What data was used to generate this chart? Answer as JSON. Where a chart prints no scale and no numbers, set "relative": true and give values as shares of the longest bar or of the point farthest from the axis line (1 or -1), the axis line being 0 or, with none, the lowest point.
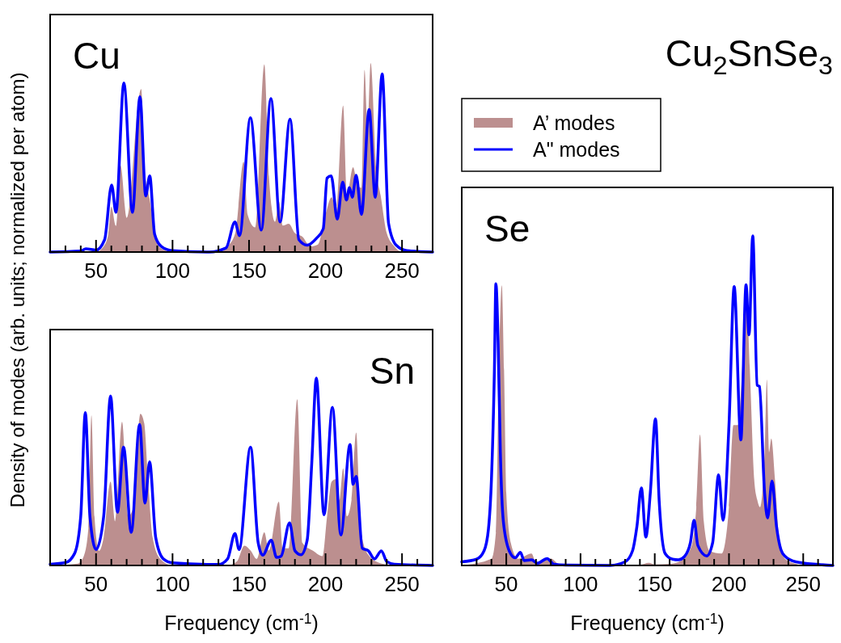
{
  "chart_data": [
    {
      "type": "line",
      "relative": true,
      "ylabel": "Density of modes (arb. units; normalized per atom)",
      "annotations": [
        "Cu"
      ],
      "xlim": [
        20,
        270
      ],
      "xticks": [
        {
          "value": 30,
          "label": null
        },
        {
          "value": 40,
          "label": null
        },
        50,
        {
          "value": 60,
          "label": null
        },
        {
          "value": 70,
          "label": null
        },
        {
          "value": 80,
          "label": null
        },
        {
          "value": 90,
          "label": null
        },
        100,
        {
          "value": 110,
          "label": null
        },
        {
          "value": 120,
          "label": null
        },
        {
          "value": 130,
          "label": null
        },
        {
          "value": 140,
          "label": null
        },
        150,
        {
          "value": 160,
          "label": null
        },
        {
          "value": 170,
          "label": null
        },
        {
          "value": 180,
          "label": null
        },
        {
          "value": 190,
          "label": null
        },
        200,
        {
          "value": 210,
          "label": null
        },
        {
          "value": 220,
          "label": null
        },
        {
          "value": 230,
          "label": null
        },
        {
          "value": 240,
          "label": null
        },
        250,
        {
          "value": 260,
          "label": null
        }
      ],
      "series": [
        {
          "type": "area",
          "color": "#bc8f8f",
          "x": [
            20,
            50,
            55,
            58,
            60,
            63,
            66,
            70,
            79.5,
            82,
            85,
            88,
            92,
            100,
            130,
            136,
            141,
            146.5,
            149,
            154,
            160,
            163,
            167,
            169.5,
            172,
            176,
            180,
            185,
            190,
            195,
            200,
            204,
            207,
            211.5,
            214,
            218,
            221,
            223.5,
            225.5,
            227.5,
            229.5,
            233,
            236,
            240,
            245,
            250,
            270
          ],
          "values": [
            0,
            0,
            0.03,
            0.094,
            0.239,
            0.138,
            0.457,
            0.181,
            0.862,
            0.413,
            0.283,
            0.123,
            0.022,
            0,
            0,
            0.03,
            0.1,
            0.478,
            0.2,
            0.13,
            0.993,
            0.4,
            0.16,
            0.268,
            0.14,
            0.15,
            0.1,
            0.08,
            0.03,
            0.04,
            0.2,
            0.29,
            0.22,
            0.775,
            0.3,
            0.449,
            0.35,
            0.34,
            0.964,
            0.66,
            1,
            0.45,
            0.3,
            0.1,
            0.03,
            0,
            0
          ]
        },
        {
          "type": "line",
          "color": "#0000ff",
          "x": [
            20,
            40,
            43.3,
            50,
            55.6,
            60.2,
            63,
            68.2,
            73.8,
            78.7,
            82.5,
            85.1,
            88.3,
            92.7,
            99.7,
            124,
            135,
            140.8,
            143.8,
            150.9,
            158,
            164.3,
            170.3,
            176.8,
            182.6,
            188,
            194,
            198.5,
            201,
            203.7,
            207.7,
            211.2,
            213.7,
            215.6,
            217.5,
            220,
            223.5,
            228.5,
            232.5,
            237,
            241.2,
            246.2,
            253.2,
            270
          ],
          "values": [
            0,
            0.005,
            0.017,
            0.01,
            0.065,
            0.355,
            0.21,
            0.894,
            0.21,
            0.822,
            0.297,
            0.403,
            0.094,
            0.029,
            0.007,
            0,
            0.022,
            0.159,
            0.087,
            0.71,
            0.116,
            0.812,
            0.159,
            0.703,
            0.065,
            0.036,
            0.072,
            0.123,
            0.391,
            0.403,
            0.174,
            0.37,
            0.275,
            0.341,
            0.29,
            0.406,
            0.199,
            0.754,
            0.29,
            0.942,
            0.152,
            0.036,
            0.007,
            0
          ]
        }
      ]
    },
    {
      "type": "line",
      "relative": true,
      "xlabel": "Frequency (cm$^{-1}$)",
      "annotations": [
        "Sn"
      ],
      "xlim": [
        20,
        270
      ],
      "xticks": [
        {
          "value": 30,
          "label": null
        },
        {
          "value": 40,
          "label": null
        },
        50,
        {
          "value": 60,
          "label": null
        },
        {
          "value": 70,
          "label": null
        },
        {
          "value": 80,
          "label": null
        },
        {
          "value": 90,
          "label": null
        },
        100,
        {
          "value": 110,
          "label": null
        },
        {
          "value": 120,
          "label": null
        },
        {
          "value": 130,
          "label": null
        },
        {
          "value": 140,
          "label": null
        },
        150,
        {
          "value": 160,
          "label": null
        },
        {
          "value": 170,
          "label": null
        },
        {
          "value": 180,
          "label": null
        },
        {
          "value": 190,
          "label": null
        },
        200,
        {
          "value": 210,
          "label": null
        },
        {
          "value": 220,
          "label": null
        },
        {
          "value": 230,
          "label": null
        },
        {
          "value": 240,
          "label": null
        },
        250,
        {
          "value": 260,
          "label": null
        }
      ],
      "series": [
        {
          "type": "area",
          "color": "#bc8f8f",
          "x": [
            20,
            38,
            42,
            45,
            47,
            49,
            52,
            55,
            59.5,
            62.5,
            67,
            71,
            74,
            79,
            81.5,
            84,
            87,
            92,
            100,
            135,
            142,
            147,
            151,
            155,
            160,
            163,
            169.5,
            172,
            176,
            181.5,
            185,
            192,
            198,
            201,
            204,
            207,
            209,
            211.5,
            214,
            217,
            220,
            223,
            228,
            235,
            240,
            245,
            270
          ],
          "values": [
            0,
            0.01,
            0.05,
            0.2,
            0.801,
            0.26,
            0.078,
            0.15,
            0.447,
            0.234,
            0.766,
            0.262,
            0.3,
            0.809,
            0.759,
            0.461,
            0.149,
            0.035,
            0,
            0,
            0.021,
            0.106,
            0.08,
            0.035,
            0.177,
            0.08,
            0.34,
            0.092,
            0.092,
            0.887,
            0.12,
            0.078,
            0.05,
            0.262,
            0.447,
            0.461,
            0.348,
            0.518,
            0.262,
            0.35,
            0.709,
            0.191,
            0.057,
            0.014,
            0.005,
            0,
            0
          ]
        },
        {
          "type": "line",
          "color": "#0000ff",
          "x": [
            20,
            30,
            36,
            40,
            43,
            46,
            50,
            55,
            59.5,
            64,
            68,
            73,
            78.5,
            82,
            85,
            89,
            94,
            100,
            130,
            136,
            140.8,
            143.5,
            151,
            156,
            159,
            164.5,
            168,
            171,
            176.5,
            180,
            184,
            188,
            191,
            194,
            199,
            204.5,
            210,
            216,
            218,
            220,
            224,
            228,
            232,
            236.5,
            240,
            245,
            270
          ],
          "values": [
            0.007,
            0.015,
            0.064,
            0.262,
            0.816,
            0.262,
            0.085,
            0.262,
            0.904,
            0.284,
            0.631,
            0.177,
            0.752,
            0.333,
            0.553,
            0.149,
            0.035,
            0.014,
            0.005,
            0.035,
            0.17,
            0.085,
            0.631,
            0.12,
            0.055,
            0.135,
            0.043,
            0.05,
            0.227,
            0.078,
            0.057,
            0.135,
            0.546,
            1,
            0.27,
            0.844,
            0.163,
            0.645,
            0.433,
            0.475,
            0.092,
            0.078,
            0.035,
            0.078,
            0.021,
            0.007,
            0
          ]
        }
      ]
    },
    {
      "type": "line",
      "relative": true,
      "title": "Cu$_{2}$SnSe$_{3}$",
      "xlabel": "Frequency (cm$^{-1}$)",
      "annotations": [
        "Se"
      ],
      "legend": "top left",
      "xlim": [
        20,
        270
      ],
      "xticks": [
        {
          "value": 30,
          "label": null
        },
        {
          "value": 40,
          "label": null
        },
        50,
        {
          "value": 60,
          "label": null
        },
        {
          "value": 70,
          "label": null
        },
        {
          "value": 80,
          "label": null
        },
        {
          "value": 90,
          "label": null
        },
        100,
        {
          "value": 110,
          "label": null
        },
        {
          "value": 120,
          "label": null
        },
        {
          "value": 130,
          "label": null
        },
        {
          "value": 140,
          "label": null
        },
        150,
        {
          "value": 160,
          "label": null
        },
        {
          "value": 170,
          "label": null
        },
        {
          "value": 180,
          "label": null
        },
        {
          "value": 190,
          "label": null
        },
        200,
        {
          "value": 210,
          "label": null
        },
        {
          "value": 220,
          "label": null
        },
        {
          "value": 230,
          "label": null
        },
        {
          "value": 240,
          "label": null
        },
        250,
        {
          "value": 260,
          "label": null
        }
      ],
      "series": [
        {
          "name": "A’  modes",
          "type": "area",
          "color": "#bc8f8f",
          "x": [
            20,
            40,
            43,
            45,
            47,
            48.5,
            50,
            53,
            58,
            67,
            70,
            80,
            85,
            90,
            140,
            146,
            150,
            160,
            168,
            175,
            178,
            180.5,
            183,
            187,
            195,
            200,
            203,
            206,
            210,
            212,
            214,
            217,
            219,
            221,
            224,
            225.5,
            227,
            228.5,
            231,
            234,
            238,
            245,
            250,
            270
          ],
          "values": [
            0,
            0.02,
            0.1,
            0.6,
            0.85,
            0.593,
            0.219,
            0.069,
            0.02,
            0.036,
            0.008,
            0.021,
            0.005,
            0,
            0.002,
            0.008,
            0.003,
            0.005,
            0.015,
            0.061,
            0.177,
            0.397,
            0.135,
            0.044,
            0.036,
            0.177,
            0.426,
            0.426,
            0.676,
            0.8,
            0.6,
            0.26,
            0.2,
            0.177,
            0.343,
            0.564,
            0.343,
            0.385,
            0.26,
            0.069,
            0.019,
            0.005,
            0,
            0
          ]
        },
        {
          "name": "A\" modes",
          "type": "line",
          "color": "#0000ff",
          "x": [
            20,
            30,
            35,
            38,
            40,
            42,
            43,
            44.5,
            46,
            48,
            52,
            56,
            59.5,
            62,
            67,
            71,
            77.5,
            82,
            90,
            120,
            130,
            135,
            138,
            141,
            144,
            147,
            150.5,
            153,
            157,
            162,
            166,
            170,
            174,
            176.5,
            179,
            185,
            189,
            193,
            196,
            200,
            203.5,
            208,
            211.5,
            213.5,
            216,
            219,
            220.5,
            224,
            226,
            229,
            232,
            235,
            238,
            245,
            260,
            270
          ],
          "values": [
            0.011,
            0.019,
            0.044,
            0.111,
            0.26,
            0.593,
            0.855,
            0.676,
            0.343,
            0.135,
            0.044,
            0.023,
            0.04,
            0.015,
            0.017,
            0.007,
            0.021,
            0.004,
            0.001,
            0,
            0.011,
            0.044,
            0.119,
            0.235,
            0.086,
            0.22,
            0.445,
            0.194,
            0.036,
            0.019,
            0.017,
            0.027,
            0.069,
            0.137,
            0.061,
            0.029,
            0.069,
            0.275,
            0.137,
            0.426,
            0.846,
            0.381,
            0.852,
            0.7,
            1,
            0.547,
            0.543,
            0.219,
            0.144,
            0.256,
            0.119,
            0.048,
            0.027,
            0.011,
            0.003,
            0
          ]
        }
      ]
    }
  ]
}
